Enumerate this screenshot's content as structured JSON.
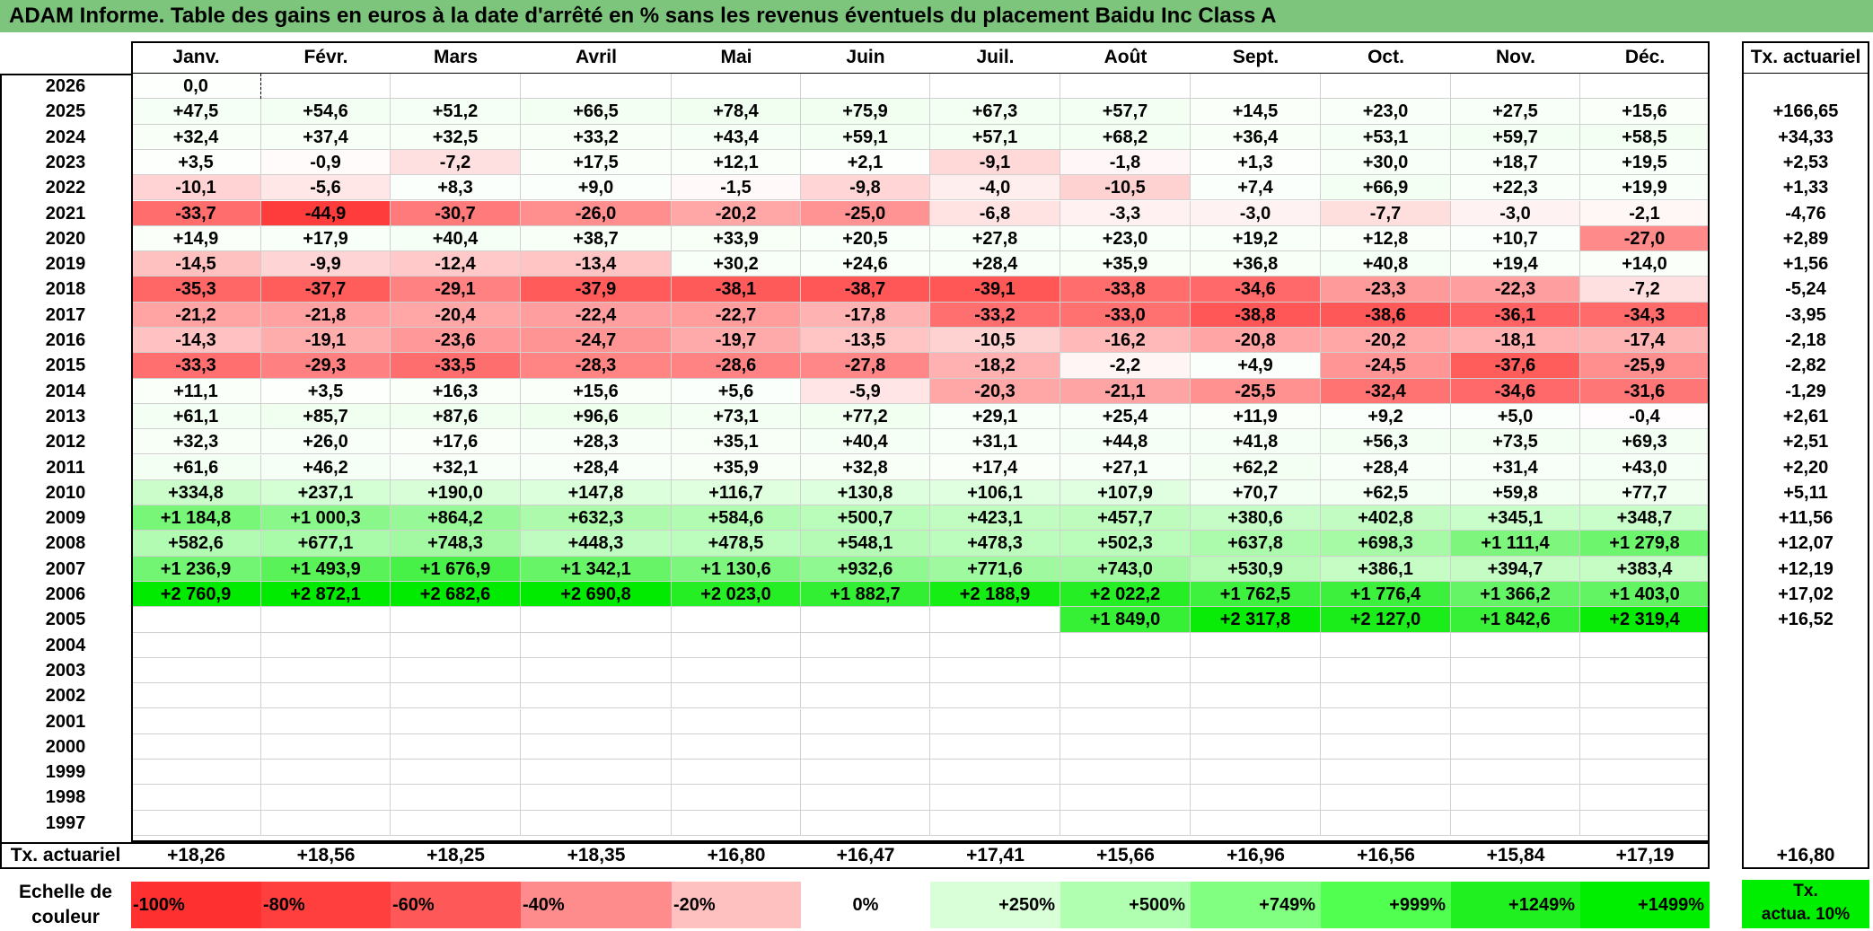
{
  "title": "ADAM Informe. Table des gains en euros à la date d'arrêté en % sans les revenus éventuels du placement Baidu Inc Class A",
  "months": [
    "Janv.",
    "Févr.",
    "Mars",
    "Avril",
    "Mai",
    "Juin",
    "Juil.",
    "Août",
    "Sept.",
    "Oct.",
    "Nov.",
    "Déc."
  ],
  "rate_header": "Tx. actuariel",
  "rows": [
    {
      "year": "2026",
      "values": [
        "0,0",
        "",
        "",
        "",
        "",
        "",
        "",
        "",
        "",
        "",
        "",
        ""
      ],
      "rate": ""
    },
    {
      "year": "2025",
      "values": [
        "+47,5",
        "+54,6",
        "+51,2",
        "+66,5",
        "+78,4",
        "+75,9",
        "+67,3",
        "+57,7",
        "+14,5",
        "+23,0",
        "+27,5",
        "+15,6"
      ],
      "rate": "+166,65"
    },
    {
      "year": "2024",
      "values": [
        "+32,4",
        "+37,4",
        "+32,5",
        "+33,2",
        "+43,4",
        "+59,1",
        "+57,1",
        "+68,2",
        "+36,4",
        "+53,1",
        "+59,7",
        "+58,5"
      ],
      "rate": "+34,33"
    },
    {
      "year": "2023",
      "values": [
        "+3,5",
        "-0,9",
        "-7,2",
        "+17,5",
        "+12,1",
        "+2,1",
        "-9,1",
        "-1,8",
        "+1,3",
        "+30,0",
        "+18,7",
        "+19,5"
      ],
      "rate": "+2,53"
    },
    {
      "year": "2022",
      "values": [
        "-10,1",
        "-5,6",
        "+8,3",
        "+9,0",
        "-1,5",
        "-9,8",
        "-4,0",
        "-10,5",
        "+7,4",
        "+66,9",
        "+22,3",
        "+19,9"
      ],
      "rate": "+1,33"
    },
    {
      "year": "2021",
      "values": [
        "-33,7",
        "-44,9",
        "-30,7",
        "-26,0",
        "-20,2",
        "-25,0",
        "-6,8",
        "-3,3",
        "-3,0",
        "-7,7",
        "-3,0",
        "-2,1"
      ],
      "rate": "-4,76"
    },
    {
      "year": "2020",
      "values": [
        "+14,9",
        "+17,9",
        "+40,4",
        "+38,7",
        "+33,9",
        "+20,5",
        "+27,8",
        "+23,0",
        "+19,2",
        "+12,8",
        "+10,7",
        "-27,0"
      ],
      "rate": "+2,89"
    },
    {
      "year": "2019",
      "values": [
        "-14,5",
        "-9,9",
        "-12,4",
        "-13,4",
        "+30,2",
        "+24,6",
        "+28,4",
        "+35,9",
        "+36,8",
        "+40,8",
        "+19,4",
        "+14,0"
      ],
      "rate": "+1,56"
    },
    {
      "year": "2018",
      "values": [
        "-35,3",
        "-37,7",
        "-29,1",
        "-37,9",
        "-38,1",
        "-38,7",
        "-39,1",
        "-33,8",
        "-34,6",
        "-23,3",
        "-22,3",
        "-7,2"
      ],
      "rate": "-5,24"
    },
    {
      "year": "2017",
      "values": [
        "-21,2",
        "-21,8",
        "-20,4",
        "-22,4",
        "-22,7",
        "-17,8",
        "-33,2",
        "-33,0",
        "-38,8",
        "-38,6",
        "-36,1",
        "-34,3"
      ],
      "rate": "-3,95"
    },
    {
      "year": "2016",
      "values": [
        "-14,3",
        "-19,1",
        "-23,6",
        "-24,7",
        "-19,7",
        "-13,5",
        "-10,5",
        "-16,2",
        "-20,8",
        "-20,2",
        "-18,1",
        "-17,4"
      ],
      "rate": "-2,18"
    },
    {
      "year": "2015",
      "values": [
        "-33,3",
        "-29,3",
        "-33,5",
        "-28,3",
        "-28,6",
        "-27,8",
        "-18,2",
        "-2,2",
        "+4,9",
        "-24,5",
        "-37,6",
        "-25,9"
      ],
      "rate": "-2,82"
    },
    {
      "year": "2014",
      "values": [
        "+11,1",
        "+3,5",
        "+16,3",
        "+15,6",
        "+5,6",
        "-5,9",
        "-20,3",
        "-21,1",
        "-25,5",
        "-32,4",
        "-34,6",
        "-31,6"
      ],
      "rate": "-1,29"
    },
    {
      "year": "2013",
      "values": [
        "+61,1",
        "+85,7",
        "+87,6",
        "+96,6",
        "+73,1",
        "+77,2",
        "+29,1",
        "+25,4",
        "+11,9",
        "+9,2",
        "+5,0",
        "-0,4"
      ],
      "rate": "+2,61"
    },
    {
      "year": "2012",
      "values": [
        "+32,3",
        "+26,0",
        "+17,6",
        "+28,3",
        "+35,1",
        "+40,4",
        "+31,1",
        "+44,8",
        "+41,8",
        "+56,3",
        "+73,5",
        "+69,3"
      ],
      "rate": "+2,51"
    },
    {
      "year": "2011",
      "values": [
        "+61,6",
        "+46,2",
        "+32,1",
        "+28,4",
        "+35,9",
        "+32,8",
        "+17,4",
        "+27,1",
        "+62,2",
        "+28,4",
        "+31,4",
        "+43,0"
      ],
      "rate": "+2,20"
    },
    {
      "year": "2010",
      "values": [
        "+334,8",
        "+237,1",
        "+190,0",
        "+147,8",
        "+116,7",
        "+130,8",
        "+106,1",
        "+107,9",
        "+70,7",
        "+62,5",
        "+59,8",
        "+77,7"
      ],
      "rate": "+5,11"
    },
    {
      "year": "2009",
      "values": [
        "+1 184,8",
        "+1 000,3",
        "+864,2",
        "+632,3",
        "+584,6",
        "+500,7",
        "+423,1",
        "+457,7",
        "+380,6",
        "+402,8",
        "+345,1",
        "+348,7"
      ],
      "rate": "+11,56"
    },
    {
      "year": "2008",
      "values": [
        "+582,6",
        "+677,1",
        "+748,3",
        "+448,3",
        "+478,5",
        "+548,1",
        "+478,3",
        "+502,3",
        "+637,8",
        "+698,3",
        "+1 111,4",
        "+1 279,8"
      ],
      "rate": "+12,07"
    },
    {
      "year": "2007",
      "values": [
        "+1 236,9",
        "+1 493,9",
        "+1 676,9",
        "+1 342,1",
        "+1 130,6",
        "+932,6",
        "+771,6",
        "+743,0",
        "+530,9",
        "+386,1",
        "+394,7",
        "+383,4"
      ],
      "rate": "+12,19"
    },
    {
      "year": "2006",
      "values": [
        "+2 760,9",
        "+2 872,1",
        "+2 682,6",
        "+2 690,8",
        "+2 023,0",
        "+1 882,7",
        "+2 188,9",
        "+2 022,2",
        "+1 762,5",
        "+1 776,4",
        "+1 366,2",
        "+1 403,0"
      ],
      "rate": "+17,02"
    },
    {
      "year": "2005",
      "values": [
        "",
        "",
        "",
        "",
        "",
        "",
        "",
        "+1 849,0",
        "+2 317,8",
        "+2 127,0",
        "+1 842,6",
        "+2 319,4"
      ],
      "rate": "+16,52"
    },
    {
      "year": "2004",
      "values": [
        "",
        "",
        "",
        "",
        "",
        "",
        "",
        "",
        "",
        "",
        "",
        ""
      ],
      "rate": ""
    },
    {
      "year": "2003",
      "values": [
        "",
        "",
        "",
        "",
        "",
        "",
        "",
        "",
        "",
        "",
        "",
        ""
      ],
      "rate": ""
    },
    {
      "year": "2002",
      "values": [
        "",
        "",
        "",
        "",
        "",
        "",
        "",
        "",
        "",
        "",
        "",
        ""
      ],
      "rate": ""
    },
    {
      "year": "2001",
      "values": [
        "",
        "",
        "",
        "",
        "",
        "",
        "",
        "",
        "",
        "",
        "",
        ""
      ],
      "rate": ""
    },
    {
      "year": "2000",
      "values": [
        "",
        "",
        "",
        "",
        "",
        "",
        "",
        "",
        "",
        "",
        "",
        ""
      ],
      "rate": ""
    },
    {
      "year": "1999",
      "values": [
        "",
        "",
        "",
        "",
        "",
        "",
        "",
        "",
        "",
        "",
        "",
        ""
      ],
      "rate": ""
    },
    {
      "year": "1998",
      "values": [
        "",
        "",
        "",
        "",
        "",
        "",
        "",
        "",
        "",
        "",
        "",
        ""
      ],
      "rate": ""
    },
    {
      "year": "1997",
      "values": [
        "",
        "",
        "",
        "",
        "",
        "",
        "",
        "",
        "",
        "",
        "",
        ""
      ],
      "rate": ""
    }
  ],
  "footer": {
    "label": "Tx. actuariel",
    "values": [
      "+18,26",
      "+18,56",
      "+18,25",
      "+18,35",
      "+16,80",
      "+16,47",
      "+17,41",
      "+15,66",
      "+16,96",
      "+16,56",
      "+15,84",
      "+17,19"
    ],
    "total": "+16,80"
  },
  "legend": {
    "label_line1": "Echelle de",
    "label_line2": "couleur",
    "steps": [
      {
        "label": "-100%",
        "color": "#ff3030",
        "align": "left"
      },
      {
        "label": "-80%",
        "color": "#ff3e3e",
        "align": "left"
      },
      {
        "label": "-60%",
        "color": "#ff5858",
        "align": "left"
      },
      {
        "label": "-40%",
        "color": "#ff8c8c",
        "align": "left"
      },
      {
        "label": "-20%",
        "color": "#ffc0c0",
        "align": "left"
      },
      {
        "label": "0%",
        "color": "#ffffff",
        "align": "mid"
      },
      {
        "label": "+250%",
        "color": "#d9ffd9",
        "align": "right"
      },
      {
        "label": "+500%",
        "color": "#b0ffb0",
        "align": "right"
      },
      {
        "label": "+749%",
        "color": "#80ff80",
        "align": "right"
      },
      {
        "label": "+999%",
        "color": "#50ff50",
        "align": "right"
      },
      {
        "label": "+1249%",
        "color": "#20f020",
        "align": "right"
      },
      {
        "label": "+1499%",
        "color": "#00ee00",
        "align": "right"
      }
    ],
    "special_line1": "Tx.",
    "special_line2": "actua. 10%"
  },
  "colors": {
    "title_bg": "#7dc57d",
    "grid_line": "#d0d0d0",
    "border": "#000000"
  }
}
